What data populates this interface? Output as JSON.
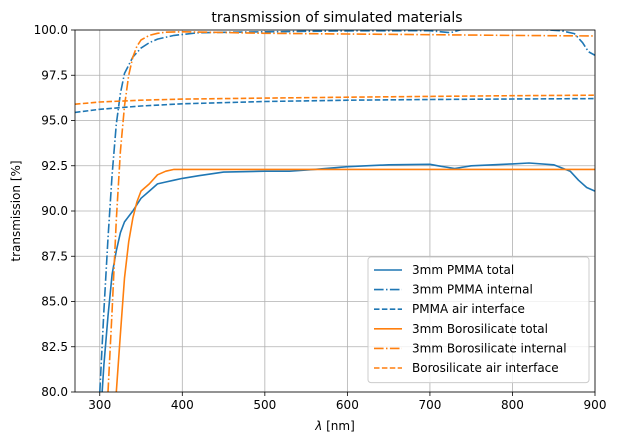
{
  "chart_data": {
    "type": "line",
    "title": "transmission of simulated materials",
    "xlabel": "λ [nm]",
    "ylabel": "transmission [%]",
    "xlim": [
      270,
      900
    ],
    "ylim": [
      80,
      100
    ],
    "xticks": [
      300,
      400,
      500,
      600,
      700,
      800,
      900
    ],
    "yticks": [
      80.0,
      82.5,
      85.0,
      87.5,
      90.0,
      92.5,
      95.0,
      97.5,
      100.0
    ],
    "xtick_labels": [
      "300",
      "400",
      "500",
      "600",
      "700",
      "800",
      "900"
    ],
    "ytick_labels": [
      "80.0",
      "82.5",
      "85.0",
      "87.5",
      "90.0",
      "92.5",
      "95.0",
      "97.5",
      "100.0"
    ],
    "grid": true,
    "legend_position": "lower right",
    "series": [
      {
        "name": "3mm PMMA total",
        "color": "#1f77b4",
        "style": "solid",
        "x": [
          300,
          305,
          310,
          315,
          320,
          325,
          330,
          340,
          350,
          360,
          370,
          380,
          390,
          400,
          420,
          450,
          500,
          530,
          560,
          600,
          650,
          700,
          710,
          730,
          750,
          800,
          820,
          850,
          870,
          880,
          890,
          900
        ],
        "y": [
          78.0,
          81.5,
          84.2,
          86.5,
          87.8,
          88.8,
          89.4,
          90.0,
          90.7,
          91.1,
          91.5,
          91.6,
          91.7,
          91.8,
          91.95,
          92.15,
          92.2,
          92.2,
          92.3,
          92.45,
          92.55,
          92.58,
          92.5,
          92.35,
          92.5,
          92.6,
          92.65,
          92.55,
          92.2,
          91.7,
          91.3,
          91.1
        ]
      },
      {
        "name": "3mm PMMA internal",
        "color": "#1f77b4",
        "style": "dashdot",
        "x": [
          300,
          305,
          310,
          315,
          320,
          325,
          330,
          340,
          350,
          360,
          370,
          390,
          420,
          500,
          600,
          700,
          725,
          740,
          800,
          830,
          860,
          875,
          885,
          892,
          900
        ],
        "y": [
          80.0,
          84.5,
          88.5,
          92.0,
          94.8,
          96.5,
          97.6,
          98.5,
          99.0,
          99.3,
          99.5,
          99.7,
          99.85,
          99.9,
          99.95,
          99.96,
          99.85,
          100.05,
          100.05,
          100.05,
          99.95,
          99.8,
          99.3,
          98.8,
          98.6
        ]
      },
      {
        "name": "PMMA air interface",
        "color": "#1f77b4",
        "style": "dashed",
        "x": [
          270,
          300,
          350,
          400,
          500,
          600,
          700,
          800,
          900
        ],
        "y": [
          95.45,
          95.62,
          95.8,
          95.92,
          96.05,
          96.12,
          96.16,
          96.19,
          96.21
        ]
      },
      {
        "name": "3mm Borosilicate total",
        "color": "#ff7f0e",
        "style": "solid",
        "x": [
          320,
          325,
          330,
          335,
          340,
          345,
          350,
          360,
          370,
          380,
          390,
          400,
          500,
          600,
          700,
          800,
          900
        ],
        "y": [
          80.0,
          83.2,
          86.3,
          88.3,
          89.6,
          90.5,
          91.1,
          91.5,
          92.0,
          92.2,
          92.3,
          92.3,
          92.3,
          92.3,
          92.3,
          92.3,
          92.3
        ]
      },
      {
        "name": "3mm Borosilicate internal",
        "color": "#ff7f0e",
        "style": "dashdot",
        "x": [
          310,
          315,
          320,
          325,
          330,
          335,
          340,
          345,
          350,
          360,
          370,
          380,
          400,
          450,
          500,
          600,
          700,
          800,
          900
        ],
        "y": [
          80.0,
          84.5,
          89.5,
          93.3,
          95.8,
          97.5,
          98.5,
          99.1,
          99.45,
          99.7,
          99.82,
          99.88,
          99.9,
          99.86,
          99.82,
          99.78,
          99.74,
          99.7,
          99.67
        ]
      },
      {
        "name": "Borosilicate air interface",
        "color": "#ff7f0e",
        "style": "dashed",
        "x": [
          270,
          300,
          350,
          400,
          500,
          600,
          700,
          800,
          900
        ],
        "y": [
          95.9,
          96.02,
          96.12,
          96.18,
          96.24,
          96.29,
          96.33,
          96.37,
          96.4
        ]
      }
    ]
  }
}
